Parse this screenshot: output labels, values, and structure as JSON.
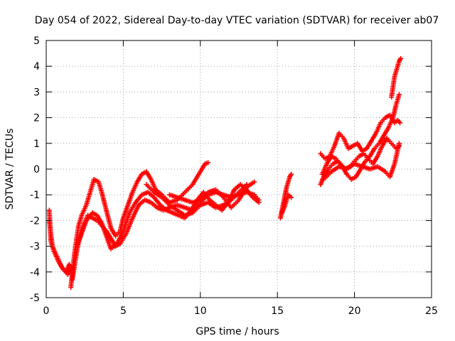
{
  "chart_data": {
    "type": "scatter",
    "title": "Day 054 of 2022, Sidereal Day-to-day VTEC variation (SDTVAR) for receiver ab07",
    "xlabel": "GPS time / hours",
    "ylabel": "SDTVAR / TECUs",
    "xlim": [
      0,
      25
    ],
    "ylim": [
      -5,
      5
    ],
    "xticks": [
      0,
      5,
      10,
      15,
      20,
      25
    ],
    "yticks": [
      -5,
      -4,
      -3,
      -2,
      -1,
      0,
      1,
      2,
      3,
      4,
      5
    ],
    "grid": true,
    "marker": "+",
    "color": "#ff0000",
    "segments": [
      {
        "x": [
          0.2,
          0.3,
          0.5,
          0.8,
          1.1,
          1.4,
          1.6
        ],
        "y": [
          -1.6,
          -2.8,
          -3.2,
          -3.6,
          -3.9,
          -4.1,
          -3.8
        ]
      },
      {
        "x": [
          0.2,
          0.4,
          0.7,
          1.0,
          1.3,
          1.5
        ],
        "y": [
          -2.0,
          -3.0,
          -3.4,
          -3.8,
          -4.0,
          -3.7
        ]
      },
      {
        "x": [
          1.6,
          1.7,
          1.8,
          1.9,
          2.0,
          2.1,
          2.3,
          2.6,
          2.9,
          3.1,
          3.4,
          3.6,
          3.9,
          4.2,
          4.5,
          4.8,
          5.0,
          5.3,
          5.6,
          5.9,
          6.2,
          6.5,
          6.8,
          7.1,
          7.5,
          8.0,
          8.5,
          9.0,
          9.5,
          10.0,
          10.3,
          10.5
        ],
        "y": [
          -4.6,
          -4.0,
          -3.5,
          -3.0,
          -2.6,
          -2.2,
          -1.8,
          -1.4,
          -0.8,
          -0.4,
          -0.5,
          -0.9,
          -1.6,
          -2.3,
          -2.6,
          -2.4,
          -1.9,
          -1.4,
          -0.9,
          -0.5,
          -0.2,
          -0.1,
          -0.4,
          -0.8,
          -1.0,
          -1.3,
          -1.2,
          -0.9,
          -0.6,
          -0.1,
          0.2,
          0.25
        ]
      },
      {
        "x": [
          1.7,
          1.9,
          2.1,
          2.4,
          2.7,
          3.0,
          3.3,
          3.6,
          3.9,
          4.2,
          4.5,
          4.8,
          5.2,
          5.6,
          6.0,
          6.4,
          6.8,
          7.2,
          7.6,
          8.0,
          8.5,
          9.0,
          9.5,
          10.0,
          10.5,
          11.0,
          11.5,
          12.0,
          12.5,
          13.0,
          13.5,
          13.8
        ],
        "y": [
          -4.3,
          -3.5,
          -2.8,
          -2.2,
          -1.8,
          -1.9,
          -2.0,
          -2.2,
          -2.4,
          -2.7,
          -3.0,
          -2.9,
          -2.5,
          -1.9,
          -1.4,
          -1.2,
          -1.3,
          -1.5,
          -1.6,
          -1.5,
          -1.4,
          -1.5,
          -1.6,
          -1.3,
          -1.0,
          -0.9,
          -1.0,
          -1.1,
          -1.0,
          -0.9,
          -1.0,
          -1.2
        ]
      },
      {
        "x": [
          2.0,
          2.3,
          2.6,
          3.0,
          3.3,
          3.6,
          3.9,
          4.2,
          4.6,
          5.0,
          5.4,
          5.8,
          6.2,
          6.6,
          7.0,
          7.4,
          7.8,
          8.2,
          8.6,
          9.0,
          9.4,
          9.8,
          10.2,
          10.6,
          11.0,
          11.4,
          11.8,
          12.2,
          12.6,
          13.0,
          13.4,
          13.8
        ],
        "y": [
          -3.0,
          -2.5,
          -2.0,
          -1.7,
          -1.8,
          -2.1,
          -2.6,
          -3.1,
          -2.9,
          -2.4,
          -1.7,
          -1.3,
          -1.0,
          -0.9,
          -1.1,
          -1.4,
          -1.6,
          -1.7,
          -1.8,
          -1.9,
          -1.6,
          -1.2,
          -0.9,
          -1.2,
          -1.4,
          -1.6,
          -1.3,
          -0.8,
          -0.6,
          -0.8,
          -1.1,
          -1.3
        ]
      },
      {
        "x": [
          6.5,
          7.0,
          7.5,
          8.0,
          8.5,
          9.0,
          9.5,
          10.0,
          10.5,
          11.0,
          11.5,
          12.0,
          12.5,
          13.0
        ],
        "y": [
          -0.6,
          -0.9,
          -1.1,
          -1.4,
          -1.6,
          -1.8,
          -1.7,
          -1.4,
          -1.3,
          -1.5,
          -1.4,
          -1.2,
          -0.9,
          -0.6
        ]
      },
      {
        "x": [
          8.0,
          8.5,
          9.0,
          9.5,
          10.0,
          10.5,
          11.0,
          11.5,
          12.0,
          12.5,
          13.0,
          13.5
        ],
        "y": [
          -1.0,
          -1.1,
          -1.2,
          -1.3,
          -1.2,
          -0.9,
          -0.8,
          -1.1,
          -1.5,
          -1.2,
          -0.7,
          -0.5
        ]
      },
      {
        "x": [
          15.2,
          15.3,
          15.4,
          15.5,
          15.6,
          15.7,
          15.8,
          15.9
        ],
        "y": [
          -1.9,
          -1.6,
          -1.3,
          -1.0,
          -0.7,
          -0.5,
          -0.3,
          -0.2
        ]
      },
      {
        "x": [
          15.3,
          15.5,
          15.7,
          15.9
        ],
        "y": [
          -1.7,
          -1.4,
          -1.0,
          -1.1
        ]
      },
      {
        "x": [
          17.8,
          18.0,
          18.3,
          18.6,
          18.9,
          19.2,
          19.5,
          19.8,
          20.1,
          20.4,
          20.7,
          21.0,
          21.3,
          21.6,
          21.9,
          22.2,
          22.5,
          22.7,
          22.9
        ],
        "y": [
          -0.6,
          -0.3,
          0.0,
          0.2,
          0.3,
          0.1,
          -0.2,
          -0.4,
          -0.3,
          0.0,
          0.3,
          0.5,
          0.8,
          1.0,
          1.3,
          1.6,
          2.0,
          2.5,
          2.9
        ]
      },
      {
        "x": [
          17.8,
          18.1,
          18.4,
          18.7,
          19.0,
          19.3,
          19.6,
          19.9,
          20.2,
          20.5,
          20.8,
          21.1,
          21.4,
          21.7,
          22.0,
          22.3,
          22.6,
          22.8,
          22.95
        ],
        "y": [
          0.6,
          0.4,
          0.5,
          0.9,
          1.4,
          1.2,
          0.8,
          0.9,
          1.0,
          0.7,
          0.8,
          1.1,
          1.4,
          1.8,
          2.0,
          2.1,
          1.8,
          1.9,
          1.8
        ]
      },
      {
        "x": [
          17.9,
          18.2,
          18.5,
          18.8,
          19.1,
          19.4,
          19.7,
          20.0,
          20.3,
          20.6,
          20.9,
          21.2,
          21.5,
          21.8,
          22.1,
          22.4,
          22.7,
          22.9
        ],
        "y": [
          -0.2,
          0.2,
          0.5,
          0.4,
          0.2,
          0.0,
          0.1,
          0.3,
          0.5,
          0.6,
          0.4,
          0.2,
          0.5,
          0.9,
          1.2,
          1.0,
          0.8,
          0.9
        ]
      },
      {
        "x": [
          18.0,
          18.5,
          19.0,
          19.5,
          20.0,
          20.5,
          21.0,
          21.5,
          22.0,
          22.3,
          22.6,
          22.9
        ],
        "y": [
          -0.4,
          -0.1,
          0.1,
          0.0,
          0.2,
          0.1,
          0.0,
          0.1,
          -0.1,
          -0.3,
          0.2,
          1.0
        ]
      },
      {
        "x": [
          22.4,
          22.5,
          22.6,
          22.7,
          22.8,
          22.9,
          23.0
        ],
        "y": [
          2.8,
          3.2,
          3.6,
          3.8,
          4.0,
          4.2,
          4.3
        ]
      }
    ]
  }
}
